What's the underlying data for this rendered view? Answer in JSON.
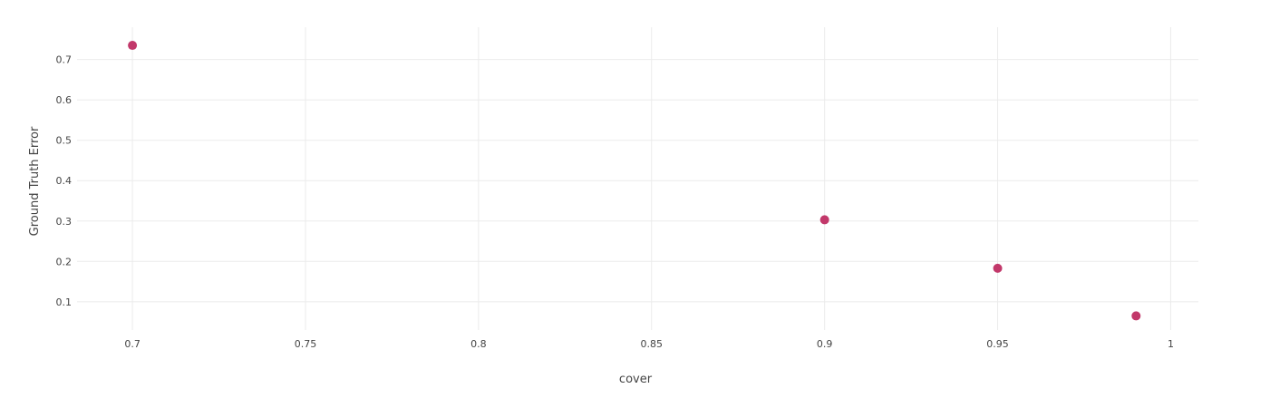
{
  "chart_data": {
    "type": "scatter",
    "xlabel": "cover",
    "ylabel": "Ground Truth Error",
    "xlim": [
      0.684,
      1.008
    ],
    "ylim": [
      0.03,
      0.78
    ],
    "x_ticks": [
      0.7,
      0.75,
      0.8,
      0.85,
      0.9,
      0.95,
      1
    ],
    "x_tick_labels": [
      "0.7",
      "0.75",
      "0.8",
      "0.85",
      "0.9",
      "0.95",
      "1"
    ],
    "y_ticks": [
      0.1,
      0.2,
      0.3,
      0.4,
      0.5,
      0.6,
      0.7
    ],
    "y_tick_labels": [
      "0.1",
      "0.2",
      "0.3",
      "0.4",
      "0.5",
      "0.6",
      "0.7"
    ],
    "grid": true,
    "series": [
      {
        "color": "#c2386a",
        "x": [
          0.7,
          0.9,
          0.95,
          0.99
        ],
        "y": [
          0.735,
          0.303,
          0.183,
          0.065
        ]
      }
    ]
  }
}
